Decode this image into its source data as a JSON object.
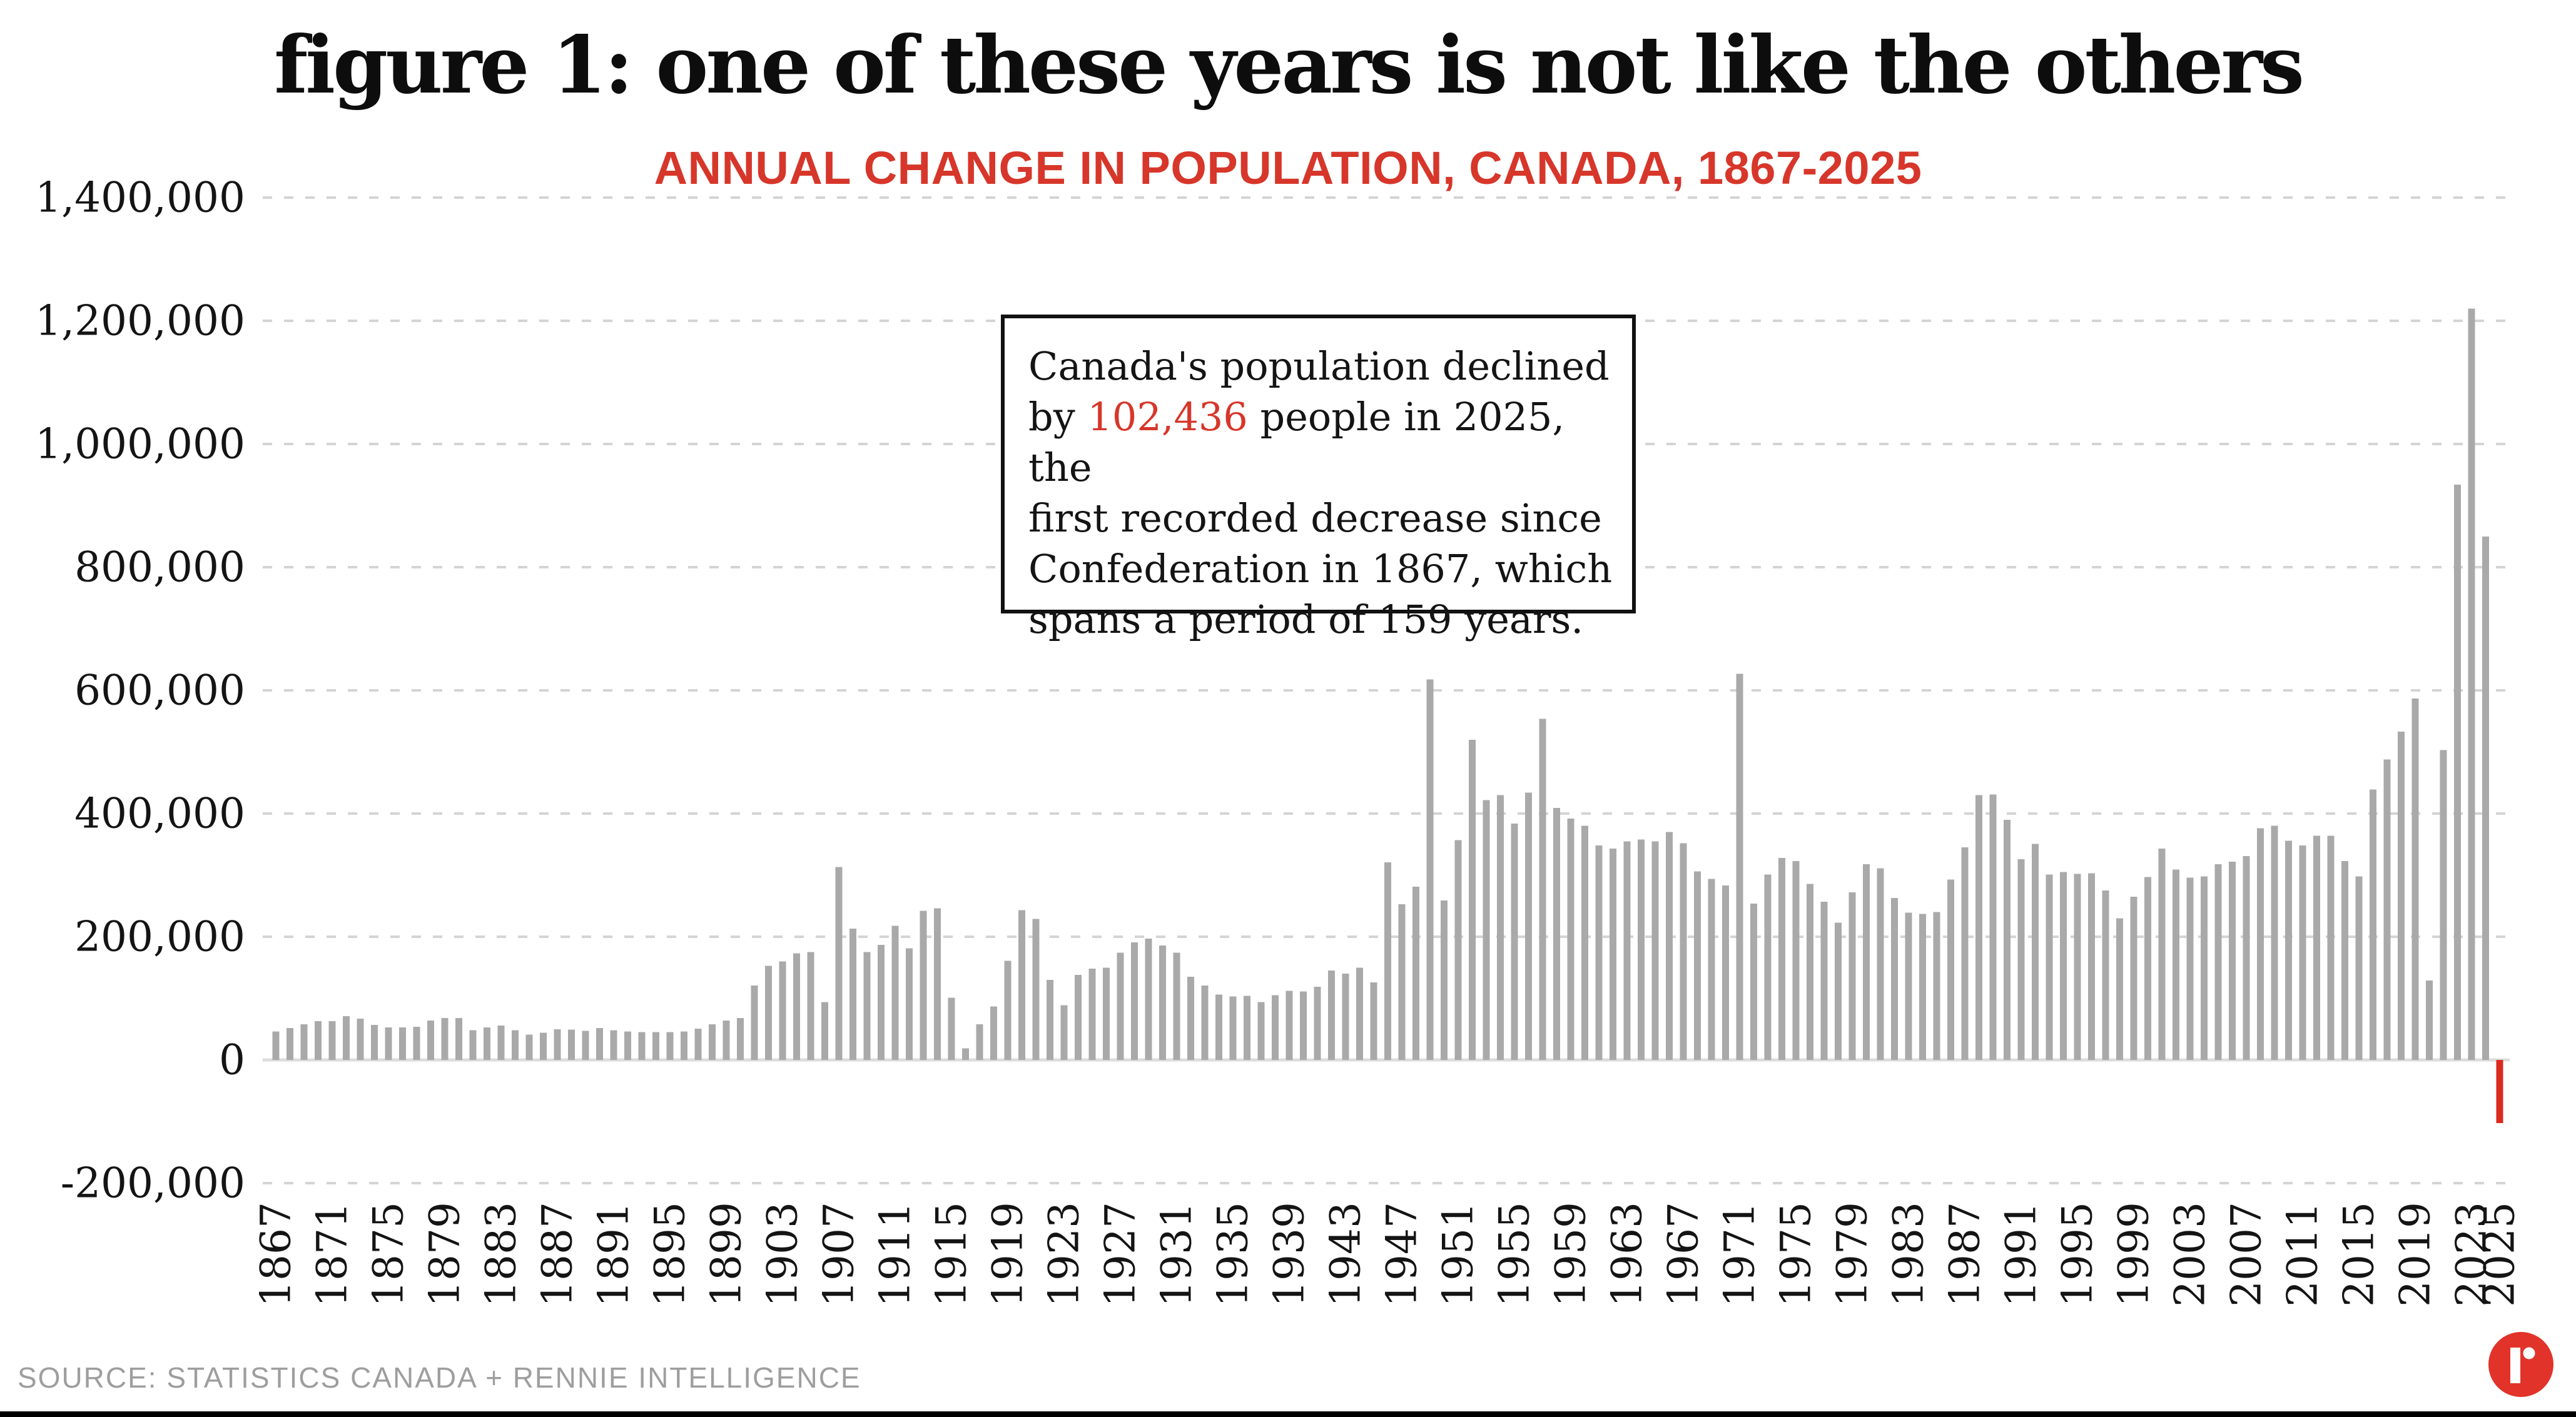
{
  "page": {
    "title": "figure 1: one of these years is not like the others",
    "subtitle": "ANNUAL CHANGE IN POPULATION, CANADA, 1867-2025",
    "source": "SOURCE: STATISTICS CANADA + RENNIE INTELLIGENCE",
    "logo_name": "rennie-logo",
    "colors": {
      "accent_red": "#d7362a",
      "bar_gray": "#a9a9a9",
      "highlight_red": "#da2b1e",
      "logo_red": "#e1332a",
      "grid_gray": "#d4d4d4",
      "zero_line_gray": "#dcdcdc",
      "axis_text": "#141414",
      "source_gray": "#9e9e9e",
      "bottom_bar_black": "#000000"
    }
  },
  "annotation": {
    "line1": "Canada's population declined",
    "line2a": "by ",
    "line2b": "102,436",
    "line2c": " people in 2025, the",
    "line3": "first recorded decrease since",
    "line4": "Confederation in 1867, which",
    "line5": "spans a period of 159 years."
  },
  "chart_data": {
    "type": "bar",
    "title": "figure 1: one of these years is not like the others",
    "subtitle": "ANNUAL CHANGE IN POPULATION, CANADA, 1867-2025",
    "xlabel": "",
    "ylabel": "",
    "x_start": 1867,
    "x_end": 2025,
    "ylim": [
      -200000,
      1400000
    ],
    "grid": "horizontal-dashed",
    "legend": "none",
    "bar_color": "#a9a9a9",
    "highlight_color": "#da2b1e",
    "highlight_year": 2025,
    "highlight_value": -102436,
    "y_ticks": [
      {
        "v": 1400000,
        "label": "1,400,000"
      },
      {
        "v": 1200000,
        "label": "1,200,000"
      },
      {
        "v": 1000000,
        "label": "1,000,000"
      },
      {
        "v": 800000,
        "label": "800,000"
      },
      {
        "v": 600000,
        "label": "600,000"
      },
      {
        "v": 400000,
        "label": "400,000"
      },
      {
        "v": 200000,
        "label": "200,000"
      },
      {
        "v": 0,
        "label": "0"
      },
      {
        "v": -200000,
        "label": "-200,000"
      }
    ],
    "x_tick_years": [
      1867,
      1871,
      1875,
      1879,
      1883,
      1887,
      1891,
      1895,
      1899,
      1903,
      1907,
      1911,
      1915,
      1919,
      1923,
      1927,
      1931,
      1935,
      1939,
      1943,
      1947,
      1951,
      1955,
      1959,
      1963,
      1967,
      1971,
      1975,
      1979,
      1983,
      1987,
      1991,
      1995,
      1999,
      2003,
      2007,
      2011,
      2015,
      2019,
      2023,
      2025
    ],
    "values": [
      46000,
      52000,
      58000,
      63000,
      63000,
      71000,
      67000,
      57000,
      53000,
      53000,
      54000,
      64000,
      68000,
      68000,
      48000,
      53000,
      56000,
      48000,
      41000,
      44000,
      50000,
      49000,
      47000,
      52000,
      48000,
      46000,
      45000,
      45000,
      45000,
      46000,
      51000,
      58000,
      64000,
      68000,
      121000,
      153000,
      160000,
      173000,
      175000,
      94000,
      313000,
      213000,
      175000,
      187000,
      218000,
      181000,
      242000,
      246000,
      101000,
      19000,
      58000,
      87000,
      161000,
      243000,
      229000,
      130000,
      89000,
      138000,
      148000,
      150000,
      174000,
      191000,
      197000,
      186000,
      174000,
      135000,
      121000,
      106000,
      103000,
      104000,
      94000,
      105000,
      112000,
      111000,
      119000,
      145000,
      140000,
      150000,
      126000,
      321000,
      253000,
      281000,
      618000,
      259000,
      357000,
      520000,
      422000,
      430000,
      384000,
      434000,
      554000,
      409000,
      392000,
      380000,
      348000,
      343000,
      355000,
      358000,
      355000,
      370000,
      352000,
      306000,
      294000,
      283000,
      627000,
      254000,
      301000,
      328000,
      323000,
      286000,
      257000,
      223000,
      272000,
      318000,
      311000,
      263000,
      239000,
      237000,
      240000,
      293000,
      345000,
      430000,
      431000,
      390000,
      326000,
      351000,
      301000,
      305000,
      302000,
      303000,
      275000,
      230000,
      265000,
      297000,
      343000,
      309000,
      296000,
      298000,
      318000,
      322000,
      331000,
      376000,
      380000,
      356000,
      348000,
      364000,
      364000,
      323000,
      298000,
      439000,
      488000,
      533000,
      587000,
      129000,
      503000,
      934000,
      1220000,
      850000,
      -102436
    ]
  }
}
